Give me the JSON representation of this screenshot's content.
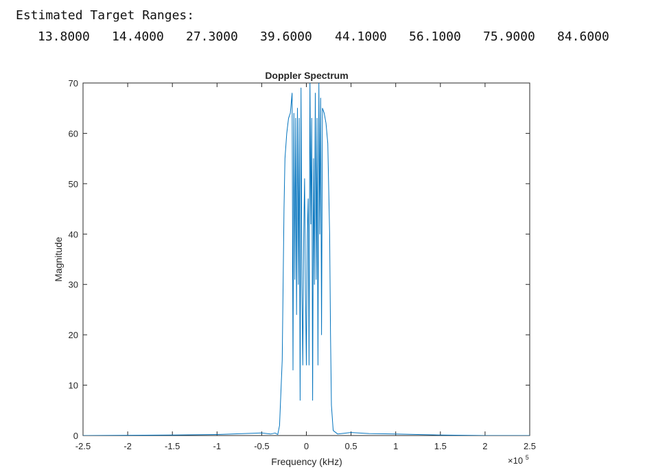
{
  "console": {
    "title": "Estimated Target Ranges:",
    "values": [
      "13.8000",
      "14.4000",
      "27.3000",
      "39.6000",
      "44.1000",
      "56.1000",
      "75.9000",
      "84.6000"
    ]
  },
  "chart_data": {
    "type": "line",
    "title": "Doppler Spectrum",
    "xlabel": "Frequency (kHz)",
    "ylabel": "Magnitude",
    "x_exponent_label": "×10",
    "x_exponent_power": "5",
    "xlim": [
      -250000,
      250000
    ],
    "ylim": [
      0,
      70
    ],
    "x_ticks": [
      -250000,
      -200000,
      -150000,
      -100000,
      -50000,
      0,
      50000,
      100000,
      150000,
      200000,
      250000
    ],
    "x_tick_labels": [
      "-2.5",
      "-2",
      "-1.5",
      "-1",
      "-0.5",
      "0",
      "0.5",
      "1",
      "1.5",
      "2",
      "2.5"
    ],
    "y_ticks": [
      0,
      10,
      20,
      30,
      40,
      50,
      60,
      70
    ],
    "y_tick_labels": [
      "0",
      "10",
      "20",
      "30",
      "40",
      "50",
      "60",
      "70"
    ],
    "grid": false,
    "series_color": "#0072BD",
    "series": [
      {
        "x": [
          -250000,
          -150000,
          -100000,
          -50000,
          -40000,
          -35000,
          -32000,
          -30000,
          -27000,
          -26000,
          -25000,
          -24000,
          -22000,
          -20000,
          -18000,
          -16000,
          -15000,
          -14000,
          -13000,
          -12000,
          -11000,
          -10000,
          -9000,
          -8000,
          -7000,
          -6000,
          -5000,
          -4000,
          -3000,
          -2000,
          -1000,
          0,
          1000,
          2000,
          3000,
          4000,
          5000,
          6000,
          7000,
          8000,
          9000,
          10000,
          11000,
          12000,
          13000,
          14000,
          15000,
          16000,
          17000,
          18000,
          20000,
          22000,
          24000,
          26000,
          27000,
          28000,
          30000,
          35000,
          50000,
          70000,
          100000,
          150000,
          200000,
          250000
        ],
        "y": [
          0,
          0.1,
          0.2,
          0.5,
          0.3,
          0.5,
          0.2,
          2,
          15,
          30,
          45,
          55,
          60,
          63,
          64,
          68,
          13,
          64,
          31,
          63,
          24,
          65,
          30,
          63,
          7,
          69,
          30,
          14,
          40,
          51,
          28,
          14,
          40,
          47,
          14,
          71,
          42,
          63,
          7,
          55,
          30,
          68,
          31,
          63,
          14,
          70,
          40,
          67,
          20,
          65,
          64,
          62,
          58,
          40,
          20,
          6,
          1,
          0.3,
          0.6,
          0.4,
          0.3,
          0.1,
          0,
          0
        ]
      }
    ]
  }
}
